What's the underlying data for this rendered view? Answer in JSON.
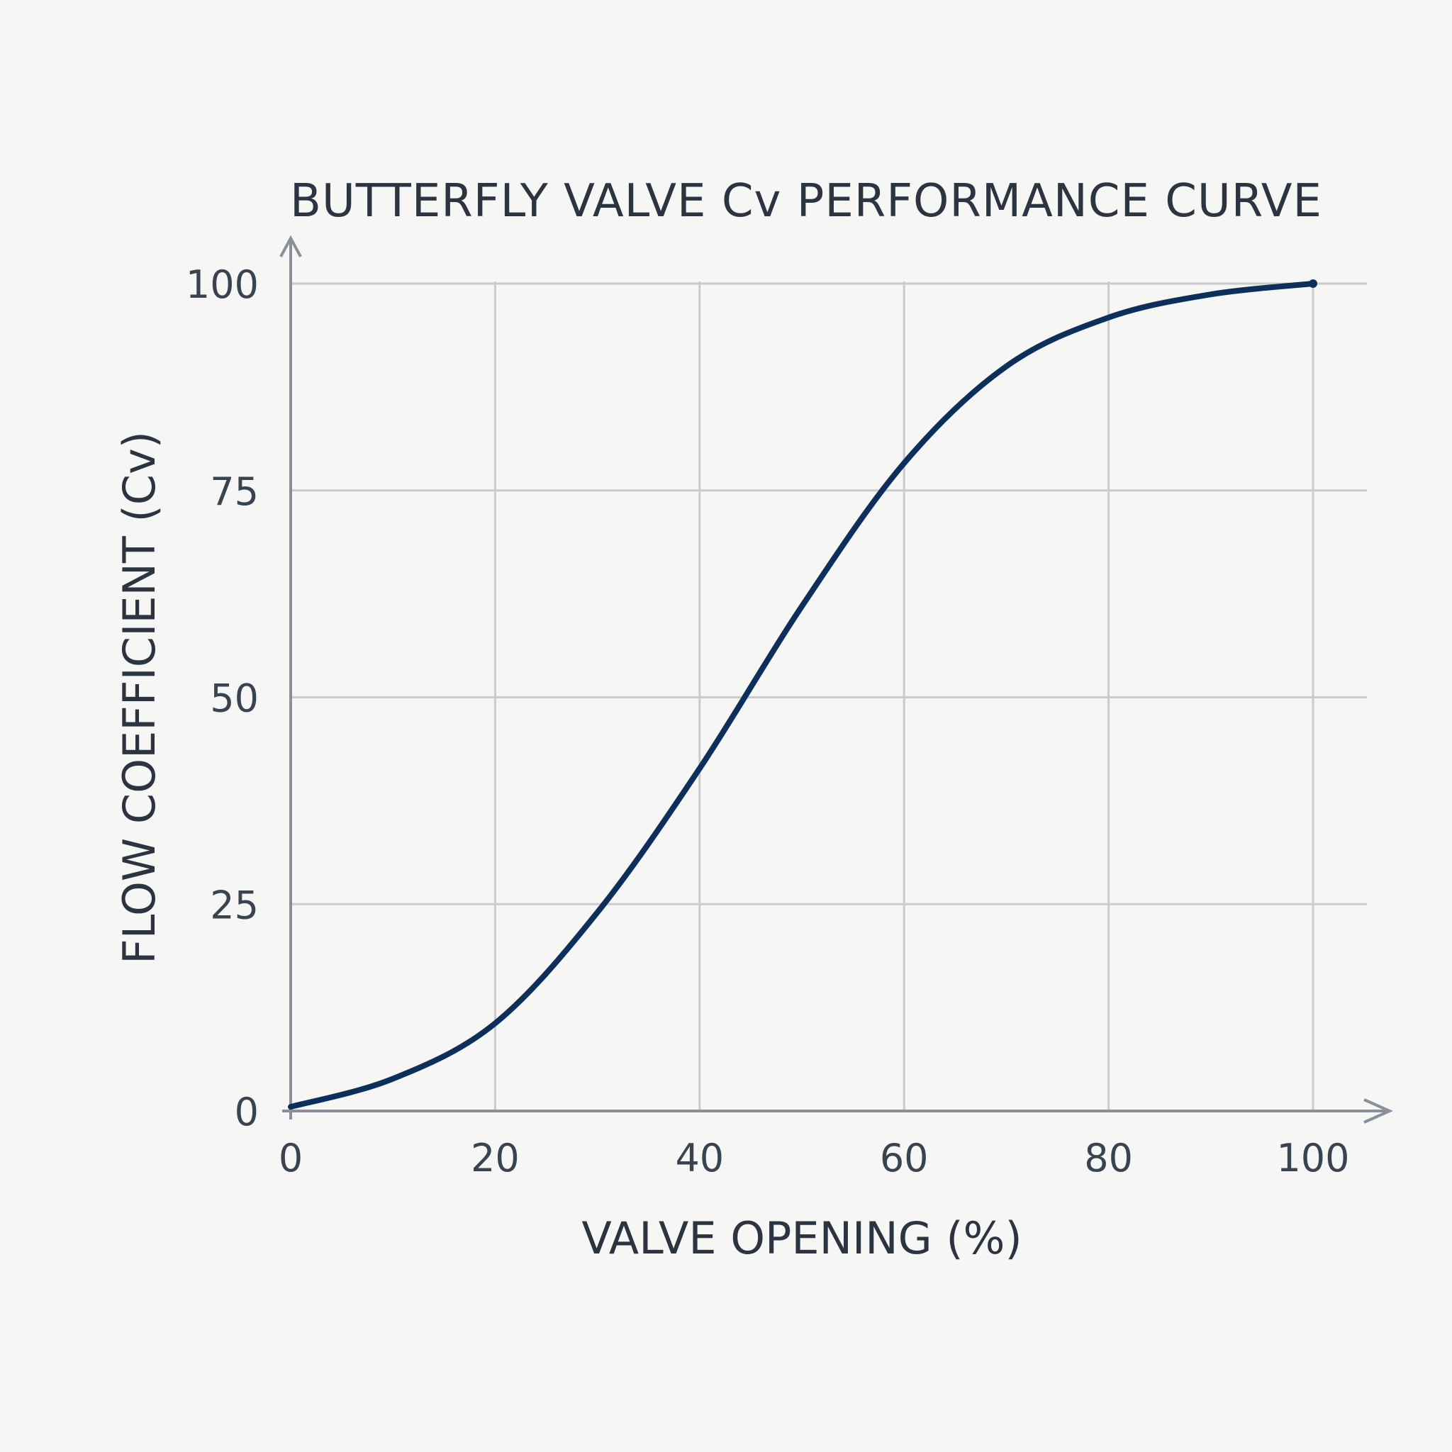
{
  "chart_data": {
    "type": "line",
    "title": "BUTTERFLY VALVE Cv PERFORMANCE CURVE",
    "xlabel": "VALVE OPENING (%)",
    "ylabel": "FLOW COEFFICIENT (Cv)",
    "xlim": [
      0,
      100
    ],
    "ylim": [
      0,
      100
    ],
    "xticks": [
      "0",
      "20",
      "40",
      "60",
      "80",
      "100"
    ],
    "yticks": [
      "0",
      "25",
      "50",
      "75",
      "100"
    ],
    "grid": true,
    "series": [
      {
        "color": "#0d2f5c",
        "x": [
          0,
          10,
          20,
          30,
          40,
          50,
          60,
          70,
          80,
          90,
          100
        ],
        "y": [
          0.5,
          3.9,
          10.6,
          24,
          41.4,
          61,
          78.3,
          90,
          95.9,
          98.7,
          100
        ]
      }
    ]
  }
}
